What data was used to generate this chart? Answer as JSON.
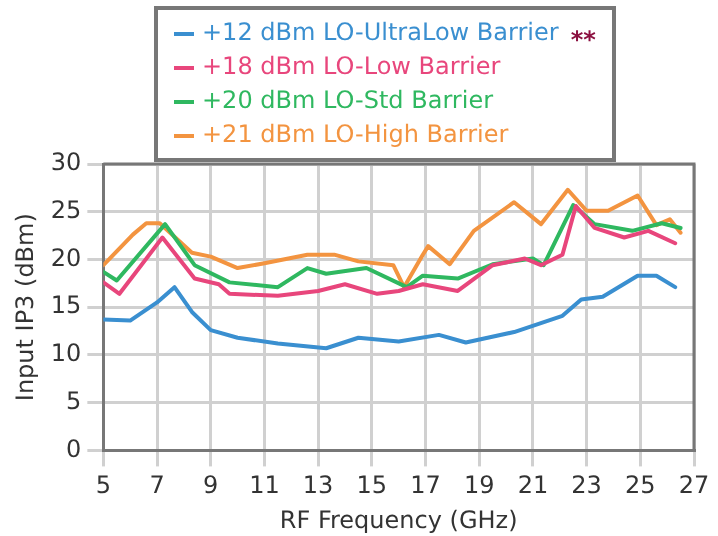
{
  "chart_data": {
    "type": "line",
    "xlabel": "RF Frequency (GHz)",
    "ylabel": "Input IP3 (dBm)",
    "xlim": [
      5,
      27
    ],
    "xticks": [
      5,
      7,
      9,
      11,
      13,
      15,
      17,
      19,
      21,
      23,
      25,
      27
    ],
    "ylim": [
      0,
      30
    ],
    "yticks": [
      0,
      5,
      10,
      15,
      20,
      25,
      30
    ],
    "grid": true,
    "legend": "top",
    "marker": "none",
    "line_style": "solid",
    "annotations": [
      "**"
    ],
    "series": [
      {
        "name": "+12 dBm LO-UltraLow Barrier",
        "color": "#3a8fd0",
        "x": [
          5,
          6,
          7,
          7.65,
          8.3,
          9,
          10,
          11.5,
          13.3,
          14.5,
          16,
          17.5,
          18.5,
          20.3,
          22.1,
          22.8,
          23.6,
          24.9,
          25.6,
          26.3
        ],
        "values": [
          13.7,
          13.6,
          15.5,
          17.1,
          14.5,
          12.6,
          11.8,
          11.2,
          10.7,
          11.8,
          11.4,
          12.1,
          11.3,
          12.4,
          14.1,
          15.8,
          16.1,
          18.3,
          18.3,
          17.1
        ]
      },
      {
        "name": "+18 dBm LO-Low Barrier",
        "color": "#e8467c",
        "x": [
          5,
          5.6,
          7.2,
          8.4,
          9.3,
          9.7,
          11.5,
          13,
          14,
          15.2,
          16,
          16.9,
          18.2,
          19.5,
          20.7,
          21.3,
          22.1,
          22.6,
          23.3,
          24.4,
          25.3,
          26.3
        ],
        "values": [
          17.6,
          16.4,
          22.3,
          18,
          17.4,
          16.4,
          16.2,
          16.7,
          17.4,
          16.4,
          16.7,
          17.4,
          16.7,
          19.4,
          20.1,
          19.4,
          20.5,
          25.6,
          23.3,
          22.3,
          23,
          21.7
        ]
      },
      {
        "name": "+20 dBm LO-Std Barrier",
        "color": "#2fb860",
        "x": [
          5,
          5.5,
          7.3,
          8.4,
          9.7,
          11.5,
          12.6,
          13.3,
          14.8,
          16.3,
          16.9,
          18.2,
          19.5,
          21,
          21.4,
          22.5,
          23.3,
          24.7,
          25.8,
          26.5
        ],
        "values": [
          18.7,
          17.8,
          23.7,
          19.4,
          17.6,
          17.1,
          19.1,
          18.5,
          19.1,
          17.1,
          18.3,
          18,
          19.5,
          20.1,
          19.4,
          25.7,
          23.7,
          23,
          23.8,
          23.3
        ]
      },
      {
        "name": "+21 dBm LO-High Barrier",
        "color": "#f39440",
        "x": [
          5,
          6.1,
          6.6,
          7.1,
          8.3,
          9,
          10,
          11,
          12.6,
          13.6,
          14.5,
          15.8,
          16.2,
          16.9,
          17.1,
          17.9,
          18.8,
          20.3,
          21.3,
          22.3,
          23,
          23.8,
          24.9,
          25.6,
          26.1,
          26.5
        ],
        "values": [
          19.4,
          22.6,
          23.8,
          23.8,
          20.7,
          20.3,
          19.1,
          19.6,
          20.5,
          20.5,
          19.8,
          19.4,
          17.1,
          20.5,
          21.4,
          19.5,
          23,
          26,
          23.7,
          27.3,
          25.1,
          25.1,
          26.7,
          23.6,
          24.2,
          22.8
        ]
      }
    ]
  }
}
